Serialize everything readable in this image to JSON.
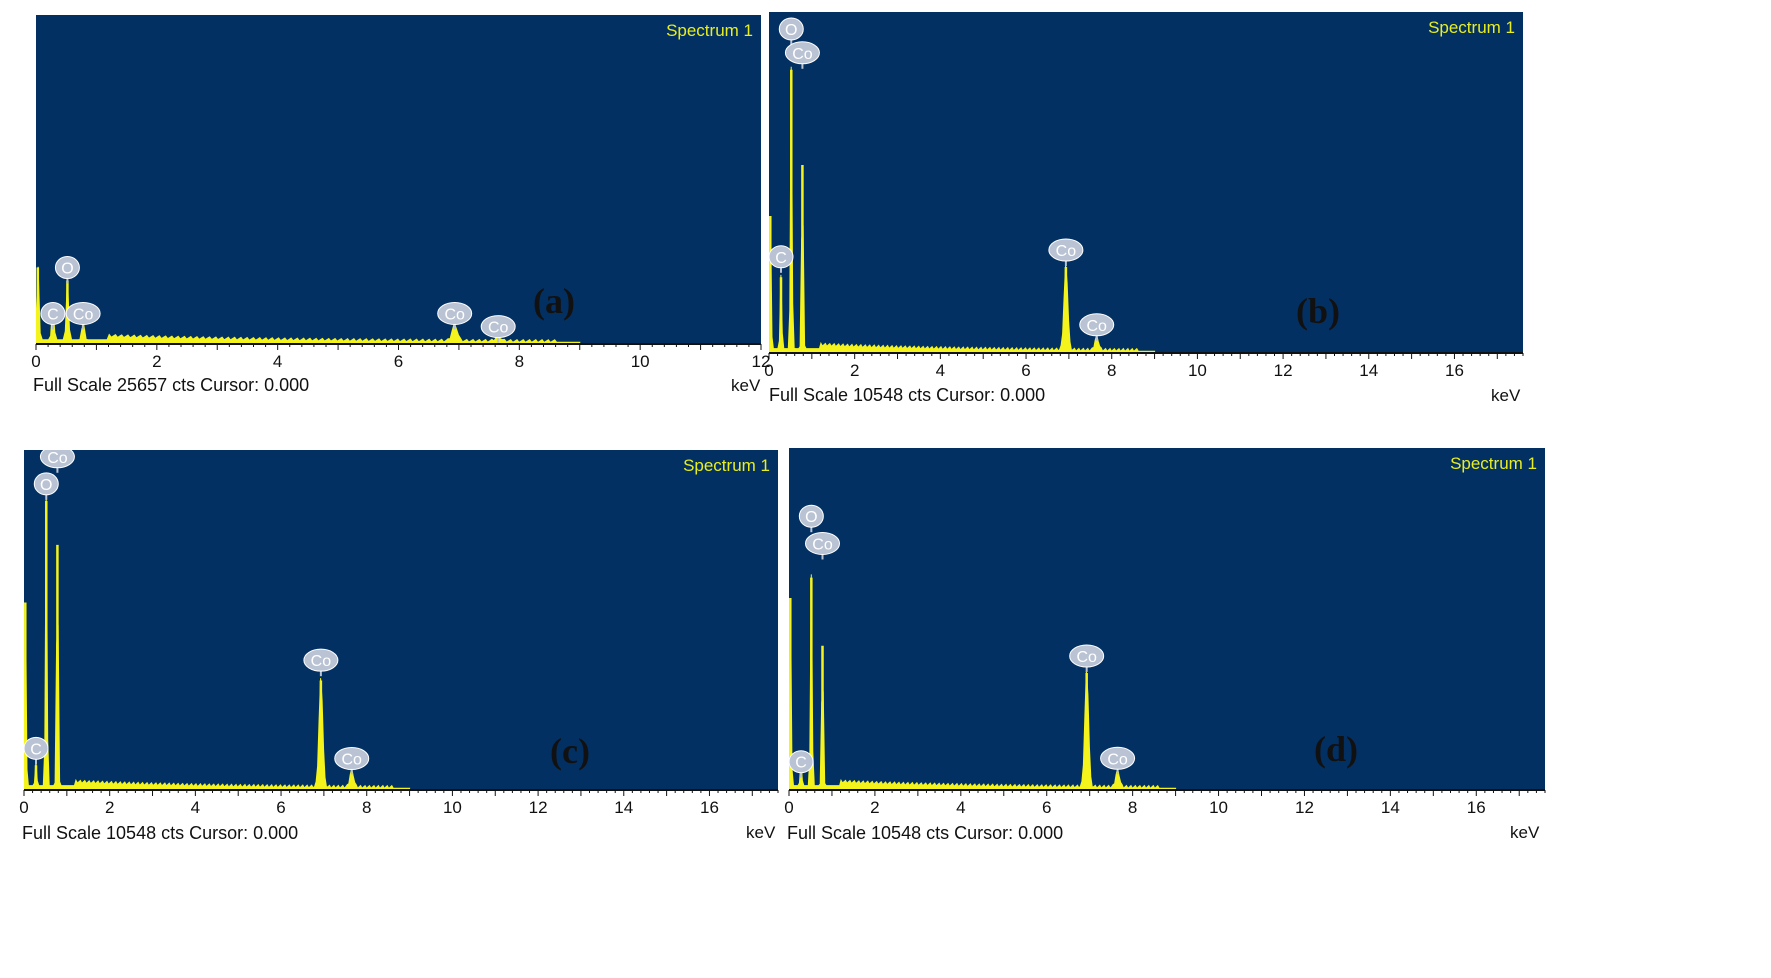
{
  "chart_data": [
    {
      "type": "area",
      "panel_label": "(a)",
      "title": "Spectrum 1",
      "xlabel": "keV",
      "xlim": [
        0,
        12
      ],
      "xticks": [
        0,
        2,
        4,
        6,
        8,
        10,
        12
      ],
      "footer": "Full Scale 25657 cts Cursor: 0.000",
      "peaks": [
        {
          "x": 0.03,
          "h": 0.23
        },
        {
          "x": 0.28,
          "h": 0.11
        },
        {
          "x": 0.52,
          "h": 0.19
        },
        {
          "x": 0.78,
          "h": 0.06
        },
        {
          "x": 6.93,
          "h": 0.05
        },
        {
          "x": 7.65,
          "h": 0.015
        }
      ],
      "labels": [
        {
          "text": "O",
          "x": 0.52,
          "h": 0.23
        },
        {
          "text": "C",
          "x": 0.28,
          "h": 0.09
        },
        {
          "text": "Co",
          "x": 0.78,
          "h": 0.09
        },
        {
          "text": "Co",
          "x": 6.93,
          "h": 0.09
        },
        {
          "text": "Co",
          "x": 7.65,
          "h": 0.05
        }
      ]
    },
    {
      "type": "area",
      "panel_label": "(b)",
      "title": "Spectrum 1",
      "xlabel": "keV",
      "xlim": [
        0,
        17.6
      ],
      "xticks": [
        0,
        2,
        4,
        6,
        8,
        10,
        12,
        14,
        16
      ],
      "footer": "Full Scale 10548 cts Cursor: 0.000",
      "peaks": [
        {
          "x": 0.03,
          "h": 0.4
        },
        {
          "x": 0.28,
          "h": 0.22
        },
        {
          "x": 0.52,
          "h": 0.83
        },
        {
          "x": 0.78,
          "h": 0.55
        },
        {
          "x": 6.93,
          "h": 0.25
        },
        {
          "x": 7.65,
          "h": 0.04
        }
      ],
      "labels": [
        {
          "text": "O",
          "x": 0.52,
          "h": 0.95
        },
        {
          "text": "Co",
          "x": 0.78,
          "h": 0.88
        },
        {
          "text": "C",
          "x": 0.28,
          "h": 0.28
        },
        {
          "text": "Co",
          "x": 6.93,
          "h": 0.3
        },
        {
          "text": "Co",
          "x": 7.65,
          "h": 0.08
        }
      ]
    },
    {
      "type": "area",
      "panel_label": "(c)",
      "title": "Spectrum 1",
      "xlabel": "keV",
      "xlim": [
        0,
        17.6
      ],
      "xticks": [
        0,
        2,
        4,
        6,
        8,
        10,
        12,
        14,
        16
      ],
      "footer": "Full Scale 10548 cts Cursor: 0.000",
      "peaks": [
        {
          "x": 0.03,
          "h": 0.55
        },
        {
          "x": 0.28,
          "h": 0.07
        },
        {
          "x": 0.52,
          "h": 0.85
        },
        {
          "x": 0.78,
          "h": 0.72
        },
        {
          "x": 6.93,
          "h": 0.32
        },
        {
          "x": 7.65,
          "h": 0.05
        }
      ],
      "labels": [
        {
          "text": "Co",
          "x": 0.78,
          "h": 0.98
        },
        {
          "text": "O",
          "x": 0.52,
          "h": 0.9
        },
        {
          "text": "C",
          "x": 0.28,
          "h": 0.12
        },
        {
          "text": "Co",
          "x": 6.93,
          "h": 0.38
        },
        {
          "text": "Co",
          "x": 7.65,
          "h": 0.09
        }
      ]
    },
    {
      "type": "area",
      "panel_label": "(d)",
      "title": "Spectrum 1",
      "xlabel": "keV",
      "xlim": [
        0,
        17.6
      ],
      "xticks": [
        0,
        2,
        4,
        6,
        8,
        10,
        12,
        14,
        16
      ],
      "footer": "Full Scale 10548 cts Cursor: 0.000",
      "peaks": [
        {
          "x": 0.03,
          "h": 0.56
        },
        {
          "x": 0.28,
          "h": 0.07
        },
        {
          "x": 0.52,
          "h": 0.62
        },
        {
          "x": 0.78,
          "h": 0.42
        },
        {
          "x": 6.93,
          "h": 0.34
        },
        {
          "x": 7.65,
          "h": 0.05
        }
      ],
      "labels": [
        {
          "text": "O",
          "x": 0.52,
          "h": 0.8
        },
        {
          "text": "Co",
          "x": 0.78,
          "h": 0.72
        },
        {
          "text": "C",
          "x": 0.28,
          "h": 0.08
        },
        {
          "text": "Co",
          "x": 6.93,
          "h": 0.39
        },
        {
          "text": "Co",
          "x": 7.65,
          "h": 0.09
        }
      ]
    }
  ],
  "colors": {
    "plot_bg": "#033062",
    "trace": "#f4f41c",
    "title_text": "#e8ee20",
    "marker_fill": "#b9c3d3",
    "marker_text": "#ffffff"
  }
}
